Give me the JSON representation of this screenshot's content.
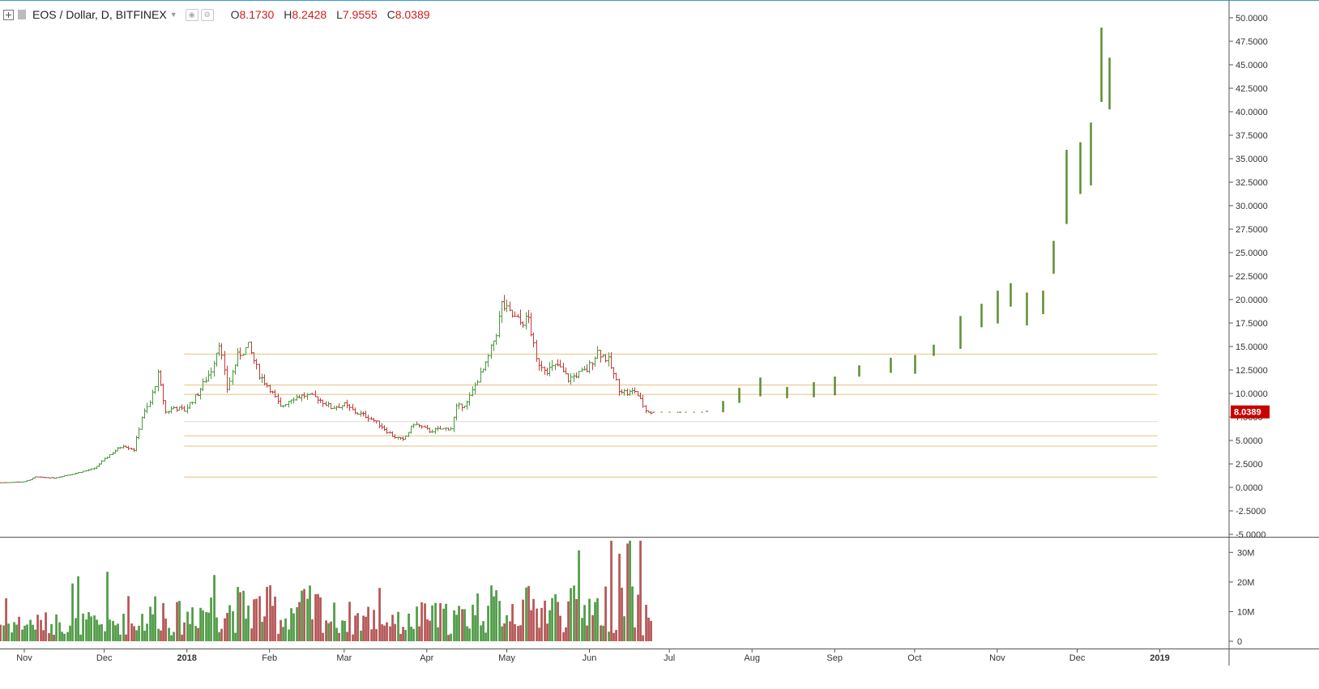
{
  "header": {
    "symbol_title": "EOS / Dollar, D, BITFINEX",
    "ohlc": [
      {
        "key": "O",
        "value": "8.1730"
      },
      {
        "key": "H",
        "value": "8.2428"
      },
      {
        "key": "L",
        "value": "7.9555"
      },
      {
        "key": "C",
        "value": "8.0389"
      }
    ],
    "last_price_label": "8.0389"
  },
  "colors": {
    "up": "#4a9a3f",
    "down": "#c23b3b",
    "projection": "#5b8f30",
    "level": "#e3c27a",
    "price_tag": "#c80000",
    "vol_up": "#4f9b46",
    "vol_down": "#b55555"
  },
  "chart_data": {
    "type": "ohlc",
    "title": "EOS / Dollar, D, BITFINEX",
    "price_axis": {
      "min": -5,
      "max": 50,
      "ticks": [
        "50.0000",
        "47.5000",
        "45.0000",
        "42.5000",
        "40.0000",
        "37.5000",
        "35.0000",
        "32.5000",
        "30.0000",
        "27.5000",
        "25.0000",
        "22.5000",
        "20.0000",
        "17.5000",
        "15.0000",
        "12.5000",
        "10.0000",
        "7.5000",
        "5.0000",
        "2.5000",
        "0.0000",
        "-2.5000",
        "-5.0000"
      ]
    },
    "volume_axis": {
      "min": 0,
      "max": 35000000,
      "ticks": [
        "30M",
        "20M",
        "10M",
        "0"
      ]
    },
    "time_axis": {
      "labels": [
        {
          "text": "Nov",
          "date": "2017-11-01"
        },
        {
          "text": "Dec",
          "date": "2017-12-01"
        },
        {
          "text": "2018",
          "date": "2018-01-01"
        },
        {
          "text": "Feb",
          "date": "2018-02-01"
        },
        {
          "text": "Mar",
          "date": "2018-03-01"
        },
        {
          "text": "Apr",
          "date": "2018-04-01"
        },
        {
          "text": "May",
          "date": "2018-05-01"
        },
        {
          "text": "Jun",
          "date": "2018-06-01"
        },
        {
          "text": "Jul",
          "date": "2018-07-01"
        },
        {
          "text": "Aug",
          "date": "2018-08-01"
        },
        {
          "text": "Sep",
          "date": "2018-09-01"
        },
        {
          "text": "Oct",
          "date": "2018-10-01"
        },
        {
          "text": "Nov",
          "date": "2018-11-01"
        },
        {
          "text": "Dec",
          "date": "2018-12-01"
        },
        {
          "text": "2019",
          "date": "2019-01-01"
        }
      ]
    },
    "horizontal_levels": [
      14.2,
      10.9,
      9.9,
      7.0,
      5.5,
      4.4,
      1.1
    ],
    "price_path": [
      [
        "2017-10-23",
        0.5
      ],
      [
        "2017-11-01",
        0.6
      ],
      [
        "2017-11-05",
        1.1
      ],
      [
        "2017-11-12",
        1.0
      ],
      [
        "2017-11-20",
        1.5
      ],
      [
        "2017-11-27",
        2.0
      ],
      [
        "2017-12-03",
        3.5
      ],
      [
        "2017-12-08",
        4.5
      ],
      [
        "2017-12-12",
        4.0
      ],
      [
        "2017-12-15",
        7.5
      ],
      [
        "2017-12-18",
        9.0
      ],
      [
        "2017-12-21",
        12.0
      ],
      [
        "2017-12-24",
        8.0
      ],
      [
        "2017-12-27",
        8.5
      ],
      [
        "2017-12-31",
        8.2
      ],
      [
        "2018-01-05",
        10.0
      ],
      [
        "2018-01-10",
        12.5
      ],
      [
        "2018-01-13",
        15.5
      ],
      [
        "2018-01-16",
        10.5
      ],
      [
        "2018-01-20",
        14.0
      ],
      [
        "2018-01-24",
        15.0
      ],
      [
        "2018-01-28",
        12.0
      ],
      [
        "2018-02-01",
        10.5
      ],
      [
        "2018-02-05",
        8.5
      ],
      [
        "2018-02-09",
        9.5
      ],
      [
        "2018-02-14",
        9.8
      ],
      [
        "2018-02-19",
        9.5
      ],
      [
        "2018-02-24",
        8.5
      ],
      [
        "2018-03-01",
        8.8
      ],
      [
        "2018-03-05",
        8.0
      ],
      [
        "2018-03-10",
        7.5
      ],
      [
        "2018-03-15",
        6.5
      ],
      [
        "2018-03-19",
        5.5
      ],
      [
        "2018-03-23",
        5.0
      ],
      [
        "2018-03-27",
        6.8
      ],
      [
        "2018-04-02",
        6.0
      ],
      [
        "2018-04-06",
        6.2
      ],
      [
        "2018-04-10",
        6.3
      ],
      [
        "2018-04-12",
        8.5
      ],
      [
        "2018-04-16",
        9.0
      ],
      [
        "2018-04-20",
        11.5
      ],
      [
        "2018-04-23",
        13.0
      ],
      [
        "2018-04-27",
        16.5
      ],
      [
        "2018-04-29",
        19.5
      ],
      [
        "2018-05-02",
        18.5
      ],
      [
        "2018-05-06",
        17.5
      ],
      [
        "2018-05-09",
        18.0
      ],
      [
        "2018-05-12",
        13.5
      ],
      [
        "2018-05-16",
        12.5
      ],
      [
        "2018-05-20",
        13.0
      ],
      [
        "2018-05-24",
        11.5
      ],
      [
        "2018-05-27",
        12.0
      ],
      [
        "2018-05-31",
        12.5
      ],
      [
        "2018-06-04",
        14.5
      ],
      [
        "2018-06-08",
        13.5
      ],
      [
        "2018-06-12",
        10.5
      ],
      [
        "2018-06-15",
        10.0
      ],
      [
        "2018-06-18",
        10.3
      ],
      [
        "2018-06-22",
        8.2
      ],
      [
        "2018-06-24",
        8.0
      ]
    ],
    "projection": [
      [
        "2018-06-25",
        8.0
      ],
      [
        "2018-07-05",
        8.0
      ],
      [
        "2018-07-15",
        8.1
      ],
      [
        "2018-07-21",
        8.6
      ],
      [
        "2018-07-27",
        9.8
      ],
      [
        "2018-08-04",
        10.7
      ],
      [
        "2018-08-14",
        10.1
      ],
      [
        "2018-08-24",
        10.4
      ],
      [
        "2018-09-01",
        10.8
      ],
      [
        "2018-09-10",
        12.4
      ],
      [
        "2018-09-22",
        13.0
      ],
      [
        "2018-10-01",
        13.1
      ],
      [
        "2018-10-08",
        14.6
      ],
      [
        "2018-10-18",
        16.5
      ],
      [
        "2018-10-26",
        18.3
      ],
      [
        "2018-11-01",
        19.2
      ],
      [
        "2018-11-06",
        20.5
      ],
      [
        "2018-11-12",
        19.0
      ],
      [
        "2018-11-18",
        19.7
      ],
      [
        "2018-11-22",
        24.5
      ],
      [
        "2018-11-27",
        32.0
      ],
      [
        "2018-12-02",
        34.0
      ],
      [
        "2018-12-06",
        35.5
      ],
      [
        "2018-12-10",
        45.0
      ],
      [
        "2018-12-13",
        43.0
      ]
    ]
  }
}
